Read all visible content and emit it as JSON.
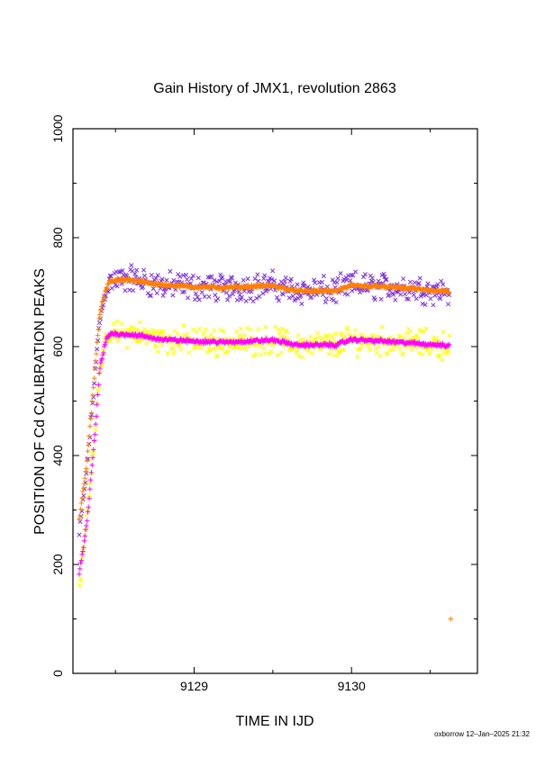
{
  "chart_data": {
    "type": "scatter",
    "title": "Gain History of JMX1, revolution 2863",
    "xlabel": "TIME IN IJD",
    "ylabel": "POSITION OF Cd CALIBRATION PEAKS",
    "xlim": [
      9128.23,
      9130.8
    ],
    "ylim": [
      0,
      1000
    ],
    "xticks": [
      9129,
      9130
    ],
    "xtick_labels": [
      "9129",
      "9130"
    ],
    "yticks": [
      0,
      200,
      400,
      600,
      800,
      1000
    ],
    "ytick_labels": [
      "0",
      "200",
      "400",
      "600",
      "800",
      "1000"
    ],
    "grid": false,
    "legend": "none",
    "series": [
      {
        "marker": "x",
        "color": "#7b2fe0",
        "trend": [
          [
            9128.27,
            255
          ],
          [
            9128.32,
            380
          ],
          [
            9128.37,
            550
          ],
          [
            9128.4,
            650
          ],
          [
            9128.44,
            705
          ],
          [
            9128.47,
            720
          ],
          [
            9128.6,
            725
          ],
          [
            9128.8,
            712
          ],
          [
            9129.0,
            710
          ],
          [
            9129.2,
            708
          ],
          [
            9129.5,
            712
          ],
          [
            9129.65,
            703
          ],
          [
            9129.9,
            702
          ],
          [
            9130.0,
            712
          ],
          [
            9130.2,
            710
          ],
          [
            9130.4,
            707
          ],
          [
            9130.6,
            702
          ]
        ],
        "spread": 22
      },
      {
        "marker": "x",
        "color": "#ffff00",
        "trend": [
          [
            9128.27,
            150
          ],
          [
            9128.32,
            300
          ],
          [
            9128.37,
            450
          ],
          [
            9128.4,
            560
          ],
          [
            9128.44,
            610
          ],
          [
            9128.47,
            622
          ],
          [
            9128.6,
            625
          ],
          [
            9128.8,
            613
          ],
          [
            9129.0,
            610
          ],
          [
            9129.2,
            608
          ],
          [
            9129.5,
            612
          ],
          [
            9129.65,
            603
          ],
          [
            9129.9,
            603
          ],
          [
            9130.0,
            612
          ],
          [
            9130.2,
            610
          ],
          [
            9130.4,
            607
          ],
          [
            9130.6,
            603
          ]
        ],
        "spread": 22
      },
      {
        "marker": "+",
        "color": "#ff7f00",
        "trend": [
          [
            9128.27,
            280
          ],
          [
            9128.32,
            390
          ],
          [
            9128.37,
            560
          ],
          [
            9128.4,
            660
          ],
          [
            9128.44,
            708
          ],
          [
            9128.47,
            722
          ],
          [
            9128.6,
            722
          ],
          [
            9128.8,
            713
          ],
          [
            9129.0,
            710
          ],
          [
            9129.2,
            708
          ],
          [
            9129.5,
            712
          ],
          [
            9129.65,
            702
          ],
          [
            9129.9,
            702
          ],
          [
            9130.0,
            712
          ],
          [
            9130.2,
            710
          ],
          [
            9130.4,
            706
          ],
          [
            9130.6,
            701
          ]
        ],
        "spread": 3,
        "extra_points": [
          [
            9130.63,
            100
          ]
        ]
      },
      {
        "marker": "+",
        "color": "#ff00ff",
        "trend": [
          [
            9128.27,
            180
          ],
          [
            9128.32,
            280
          ],
          [
            9128.37,
            440
          ],
          [
            9128.4,
            560
          ],
          [
            9128.44,
            612
          ],
          [
            9128.47,
            624
          ],
          [
            9128.6,
            622
          ],
          [
            9128.8,
            613
          ],
          [
            9129.0,
            610
          ],
          [
            9129.2,
            608
          ],
          [
            9129.5,
            612
          ],
          [
            9129.65,
            603
          ],
          [
            9129.9,
            603
          ],
          [
            9130.0,
            613
          ],
          [
            9130.2,
            610
          ],
          [
            9130.4,
            606
          ],
          [
            9130.6,
            602
          ]
        ],
        "spread": 3
      }
    ]
  },
  "footer": {
    "stamp": "oxborrow 12–Jan–2025 21:32"
  }
}
